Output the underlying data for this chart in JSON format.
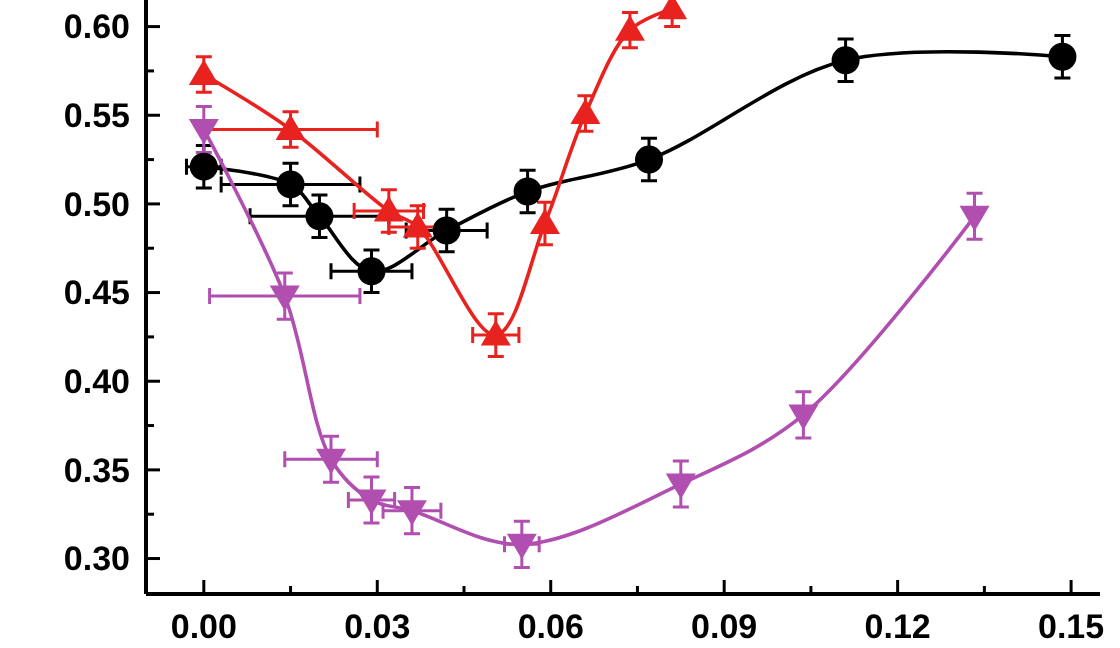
{
  "chart_data": {
    "type": "line",
    "xlim": [
      -0.01,
      0.155
    ],
    "ylim": [
      0.28,
      0.615
    ],
    "xticks": [
      {
        "value": 0,
        "label": "0.00"
      },
      {
        "value": 0.015,
        "label": null
      },
      {
        "value": 0.03,
        "label": "0.03"
      },
      {
        "value": 0.045,
        "label": null
      },
      {
        "value": 0.06,
        "label": "0.06"
      },
      {
        "value": 0.075,
        "label": null
      },
      {
        "value": 0.09,
        "label": "0.09"
      },
      {
        "value": 0.105,
        "label": null
      },
      {
        "value": 0.12,
        "label": "0.12"
      },
      {
        "value": 0.135,
        "label": null
      },
      {
        "value": 0.15,
        "label": "0.15"
      }
    ],
    "yticks": [
      {
        "value": 0.3,
        "label": "0.30"
      },
      {
        "value": 0.325,
        "label": null
      },
      {
        "value": 0.35,
        "label": "0.35"
      },
      {
        "value": 0.375,
        "label": null
      },
      {
        "value": 0.4,
        "label": "0.40"
      },
      {
        "value": 0.425,
        "label": null
      },
      {
        "value": 0.45,
        "label": "0.45"
      },
      {
        "value": 0.475,
        "label": null
      },
      {
        "value": 0.5,
        "label": "0.50"
      },
      {
        "value": 0.525,
        "label": null
      },
      {
        "value": 0.55,
        "label": "0.55"
      },
      {
        "value": 0.575,
        "label": null
      },
      {
        "value": 0.6,
        "label": "0.60"
      }
    ],
    "grid": false,
    "line_style": "solid",
    "series": [
      {
        "color": "#000000",
        "marker": "circle",
        "x": [
          0,
          0.015,
          0.02,
          0.029,
          0.042,
          0.056,
          0.077,
          0.111,
          0.1485
        ],
        "values": [
          0.521,
          0.511,
          0.493,
          0.462,
          0.485,
          0.507,
          0.525,
          0.581,
          0.583
        ],
        "errors": [
          0.012,
          0.012,
          0.012,
          0.012,
          0.012,
          0.012,
          0.012,
          0.012,
          0.012
        ],
        "xerrors": [
          0.003,
          0.012,
          0.012,
          0.007,
          0.007,
          null,
          null,
          null,
          null
        ]
      },
      {
        "color": "#e8231f",
        "marker": "triangle",
        "x": [
          0,
          0.015,
          0.032,
          0.037,
          0.0505,
          0.059,
          0.066,
          0.0737,
          0.081
        ],
        "values": [
          0.573,
          0.542,
          0.496,
          0.487,
          0.426,
          0.489,
          0.551,
          0.598,
          0.61
        ],
        "errors": [
          0.01,
          0.01,
          0.012,
          0.012,
          0.012,
          0.012,
          0.01,
          0.01,
          0.01
        ],
        "xerrors": [
          null,
          0.015,
          0.006,
          0.005,
          0.004,
          null,
          null,
          null,
          null
        ]
      },
      {
        "color": "#b04fb0",
        "marker": "triangle-down",
        "x": [
          0,
          0.014,
          0.022,
          0.029,
          0.036,
          0.055,
          0.0825,
          0.1037,
          0.1333
        ],
        "values": [
          0.542,
          0.448,
          0.356,
          0.333,
          0.327,
          0.308,
          0.342,
          0.381,
          0.493
        ],
        "errors": [
          0.013,
          0.013,
          0.013,
          0.013,
          0.013,
          0.013,
          0.013,
          0.013,
          0.013
        ],
        "xerrors": [
          null,
          0.013,
          0.008,
          0.004,
          0.005,
          0.003,
          null,
          null,
          null
        ]
      }
    ]
  }
}
